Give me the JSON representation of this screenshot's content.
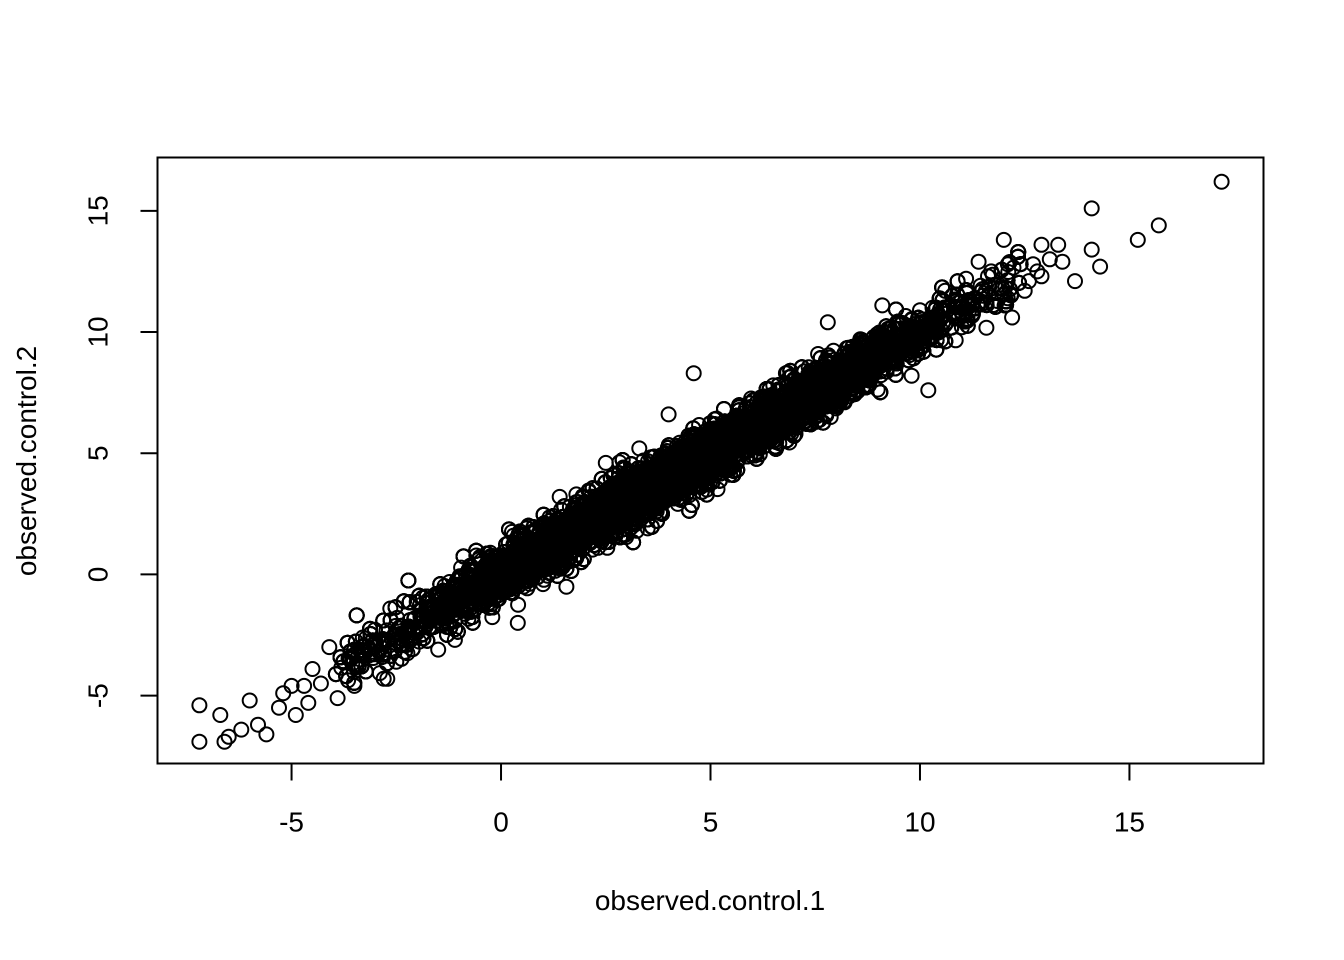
{
  "chart_data": {
    "type": "scatter",
    "title": "",
    "xlabel": "observed.control.1",
    "ylabel": "observed.control.2",
    "xlim": [
      -8.2,
      18.2
    ],
    "ylim": [
      -7.8,
      17.2
    ],
    "x_ticks": [
      -5,
      0,
      5,
      10,
      15
    ],
    "y_ticks": [
      -5,
      0,
      5,
      10,
      15
    ],
    "x_tick_labels": [
      "-5",
      "0",
      "5",
      "10",
      "15"
    ],
    "y_tick_labels": [
      "-5",
      "0",
      "5",
      "10",
      "15"
    ],
    "grid": false,
    "legend": "none",
    "marker": "open-circle",
    "color": "#000000",
    "dense_band": {
      "description_free_trend": {
        "slope": 1.0,
        "intercept": 0.0
      },
      "x_range": [
        -3.0,
        11.5
      ],
      "residual_spread": 0.55,
      "approx_point_count": 14000
    },
    "series": [
      {
        "x": [
          17.2,
          14.1,
          15.7,
          15.2,
          14.1,
          14.3,
          13.7,
          13.3,
          13.4,
          13.1,
          12.9,
          12.9,
          12.8,
          12.7,
          12.6,
          12.5,
          12.2,
          12.1,
          12.0,
          11.9,
          11.7,
          11.5,
          11.4,
          11.1,
          10.9,
          10.6,
          10.2,
          10.0,
          9.8,
          7.8,
          6.8,
          6.5,
          4.6,
          4.0,
          3.5,
          3.3,
          2.7,
          2.5,
          1.8,
          1.4,
          0.9,
          0.3,
          0.4,
          -0.3,
          -0.7,
          -1.1,
          -1.5,
          -2.0,
          -2.5,
          -2.8,
          -3.0,
          -3.3,
          -3.5,
          -3.7,
          -3.9,
          -4.1,
          -4.3,
          -4.5,
          -4.6,
          -4.7,
          -4.9,
          -5.0,
          -5.2,
          -5.3,
          -5.6,
          -5.8,
          -6.0,
          -6.2,
          -6.5,
          -6.6,
          -6.7,
          -7.2,
          -7.2,
          9.1,
          8.9,
          10.6,
          10.3,
          11.0,
          11.3,
          8.2
        ],
        "y": [
          16.2,
          15.1,
          14.4,
          13.8,
          13.4,
          12.7,
          12.1,
          13.6,
          12.9,
          13.0,
          12.3,
          13.6,
          12.5,
          12.8,
          12.1,
          11.7,
          10.6,
          12.8,
          13.8,
          11.8,
          12.5,
          11.5,
          12.9,
          12.2,
          11.2,
          10.3,
          7.6,
          10.9,
          8.2,
          10.4,
          8.3,
          7.8,
          8.3,
          6.6,
          1.9,
          5.2,
          3.6,
          4.6,
          3.3,
          3.2,
          1.7,
          1.6,
          -2.0,
          -0.3,
          0.2,
          -2.7,
          -3.1,
          -2.4,
          -3.6,
          -4.3,
          -3.0,
          -2.6,
          -4.6,
          -4.2,
          -5.1,
          -3.0,
          -4.5,
          -3.9,
          -5.3,
          -4.6,
          -5.8,
          -4.6,
          -4.9,
          -5.5,
          -6.6,
          -6.2,
          -5.2,
          -6.4,
          -6.7,
          -6.9,
          -5.8,
          -5.4,
          -6.9,
          11.1,
          9.8,
          11.7,
          11.0,
          10.2,
          11.4,
          7.1
        ]
      }
    ]
  }
}
